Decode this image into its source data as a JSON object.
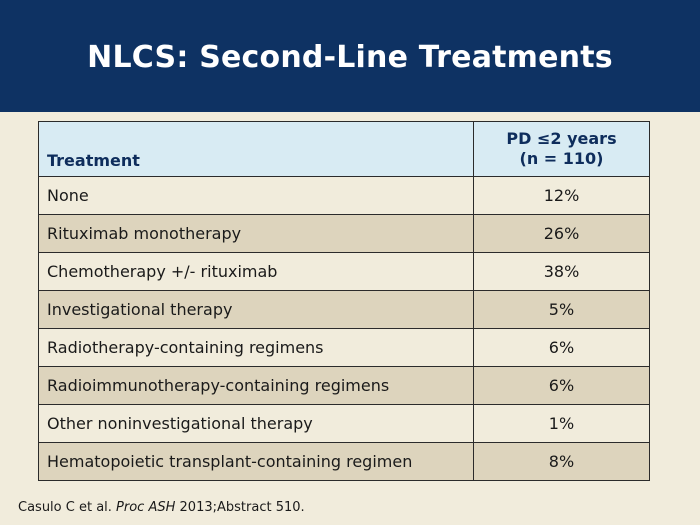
{
  "slide": {
    "title": "NLCS: Second-Line Treatments"
  },
  "table": {
    "headers": {
      "treatment": "Treatment",
      "value_line1": "PD ≤2 years",
      "value_line2": "(n = 110)"
    },
    "rows": [
      {
        "treatment": "None",
        "value": "12%"
      },
      {
        "treatment": "Rituximab monotherapy",
        "value": "26%"
      },
      {
        "treatment": "Chemotherapy +/- rituximab",
        "value": "38%"
      },
      {
        "treatment": "Investigational therapy",
        "value": "5%"
      },
      {
        "treatment": "Radiotherapy-containing regimens",
        "value": "6%"
      },
      {
        "treatment": "Radioimmunotherapy-containing regimens",
        "value": "6%"
      },
      {
        "treatment": "Other noninvestigational therapy",
        "value": "1%"
      },
      {
        "treatment": "Hematopoietic transplant-containing regimen",
        "value": "8%"
      }
    ]
  },
  "citation": {
    "prefix": "Casulo C et al. ",
    "journal": "Proc ASH",
    "suffix": " 2013;Abstract 510."
  },
  "colors": {
    "title_bar": "#0e3263",
    "background": "#f1ecdc",
    "header_fill": "#d8ebf3",
    "row_alt_fill": "#ddd4bd"
  }
}
